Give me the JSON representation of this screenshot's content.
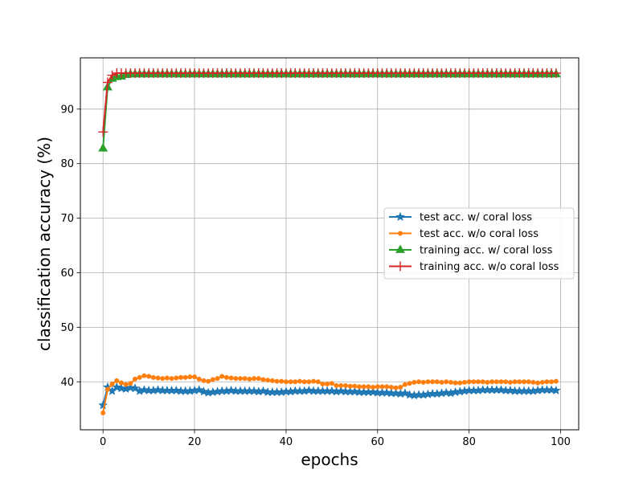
{
  "chart_data": {
    "type": "line",
    "xlabel": "epochs",
    "ylabel": "classification accuracy (%)",
    "xlim": [
      -4.95,
      103.95
    ],
    "ylim": [
      31.2,
      99.4
    ],
    "xticks": [
      0,
      20,
      40,
      60,
      80,
      100
    ],
    "yticks": [
      40,
      50,
      60,
      70,
      80,
      90
    ],
    "grid": true,
    "legend_position": "center-right",
    "series": [
      {
        "name": "test acc. w/ coral loss",
        "color": "#1f77b4",
        "marker": "star",
        "x": [
          0,
          1,
          2,
          3,
          4,
          5,
          6,
          7,
          8,
          9,
          10,
          11,
          12,
          13,
          14,
          15,
          16,
          17,
          18,
          19,
          20,
          21,
          22,
          23,
          24,
          25,
          26,
          27,
          28,
          29,
          30,
          31,
          32,
          33,
          34,
          35,
          36,
          37,
          38,
          39,
          40,
          41,
          42,
          43,
          44,
          45,
          46,
          47,
          48,
          49,
          50,
          51,
          52,
          53,
          54,
          55,
          56,
          57,
          58,
          59,
          60,
          61,
          62,
          63,
          64,
          65,
          66,
          67,
          68,
          69,
          70,
          71,
          72,
          73,
          74,
          75,
          76,
          77,
          78,
          79,
          80,
          81,
          82,
          83,
          84,
          85,
          86,
          87,
          88,
          89,
          90,
          91,
          92,
          93,
          94,
          95,
          96,
          97,
          98,
          99
        ],
        "y": [
          35.7,
          39.0,
          38.3,
          39.0,
          38.8,
          38.7,
          38.9,
          38.8,
          38.3,
          38.5,
          38.4,
          38.4,
          38.5,
          38.4,
          38.4,
          38.4,
          38.4,
          38.3,
          38.3,
          38.3,
          38.4,
          38.5,
          38.2,
          38.0,
          38.1,
          38.2,
          38.3,
          38.3,
          38.4,
          38.3,
          38.3,
          38.3,
          38.3,
          38.3,
          38.2,
          38.3,
          38.1,
          38.1,
          38.1,
          38.1,
          38.2,
          38.2,
          38.3,
          38.3,
          38.3,
          38.4,
          38.3,
          38.3,
          38.3,
          38.3,
          38.3,
          38.2,
          38.3,
          38.2,
          38.2,
          38.2,
          38.1,
          38.1,
          38.1,
          38.1,
          38.0,
          38.0,
          38.0,
          37.9,
          37.9,
          37.8,
          37.9,
          37.6,
          37.5,
          37.6,
          37.6,
          37.7,
          37.8,
          37.8,
          37.9,
          38.0,
          37.9,
          38.1,
          38.2,
          38.3,
          38.4,
          38.4,
          38.4,
          38.5,
          38.5,
          38.5,
          38.5,
          38.5,
          38.4,
          38.4,
          38.3,
          38.3,
          38.3,
          38.3,
          38.3,
          38.4,
          38.5,
          38.5,
          38.5,
          38.4
        ]
      },
      {
        "name": "test acc. w/o coral loss",
        "color": "#ff7f0e",
        "marker": "circle",
        "x": [
          0,
          1,
          2,
          3,
          4,
          5,
          6,
          7,
          8,
          9,
          10,
          11,
          12,
          13,
          14,
          15,
          16,
          17,
          18,
          19,
          20,
          21,
          22,
          23,
          24,
          25,
          26,
          27,
          28,
          29,
          30,
          31,
          32,
          33,
          34,
          35,
          36,
          37,
          38,
          39,
          40,
          41,
          42,
          43,
          44,
          45,
          46,
          47,
          48,
          49,
          50,
          51,
          52,
          53,
          54,
          55,
          56,
          57,
          58,
          59,
          60,
          61,
          62,
          63,
          64,
          65,
          66,
          67,
          68,
          69,
          70,
          71,
          72,
          73,
          74,
          75,
          76,
          77,
          78,
          79,
          80,
          81,
          82,
          83,
          84,
          85,
          86,
          87,
          88,
          89,
          90,
          91,
          92,
          93,
          94,
          95,
          96,
          97,
          98,
          99
        ],
        "y": [
          34.3,
          38.6,
          39.6,
          40.2,
          39.8,
          39.5,
          39.7,
          40.5,
          40.8,
          41.1,
          41.0,
          40.8,
          40.7,
          40.6,
          40.7,
          40.6,
          40.7,
          40.8,
          40.8,
          40.9,
          40.9,
          40.5,
          40.2,
          40.1,
          40.4,
          40.6,
          41.0,
          40.8,
          40.7,
          40.6,
          40.6,
          40.6,
          40.5,
          40.6,
          40.6,
          40.4,
          40.3,
          40.2,
          40.1,
          40.1,
          40.0,
          40.0,
          40.0,
          40.1,
          40.0,
          40.0,
          40.1,
          40.0,
          39.6,
          39.6,
          39.7,
          39.3,
          39.3,
          39.3,
          39.2,
          39.2,
          39.1,
          39.1,
          39.1,
          39.0,
          39.1,
          39.1,
          39.1,
          39.0,
          38.9,
          39.0,
          39.5,
          39.7,
          39.9,
          40.0,
          39.9,
          40.0,
          40.0,
          40.0,
          39.9,
          40.0,
          39.9,
          39.8,
          39.8,
          39.9,
          40.0,
          40.0,
          40.0,
          40.0,
          39.9,
          40.0,
          40.0,
          40.0,
          40.0,
          39.9,
          40.0,
          40.0,
          40.0,
          40.0,
          39.9,
          39.8,
          39.9,
          40.0,
          40.0,
          40.1
        ]
      },
      {
        "name": "training acc. w/ coral loss",
        "color": "#2ca02c",
        "marker": "triangle",
        "x": [
          0,
          1,
          2,
          3,
          4,
          5,
          6,
          7,
          8,
          9,
          10,
          11,
          12,
          13,
          14,
          15,
          16,
          17,
          18,
          19,
          20,
          21,
          22,
          23,
          24,
          25,
          26,
          27,
          28,
          29,
          30,
          31,
          32,
          33,
          34,
          35,
          36,
          37,
          38,
          39,
          40,
          41,
          42,
          43,
          44,
          45,
          46,
          47,
          48,
          49,
          50,
          51,
          52,
          53,
          54,
          55,
          56,
          57,
          58,
          59,
          60,
          61,
          62,
          63,
          64,
          65,
          66,
          67,
          68,
          69,
          70,
          71,
          72,
          73,
          74,
          75,
          76,
          77,
          78,
          79,
          80,
          81,
          82,
          83,
          84,
          85,
          86,
          87,
          88,
          89,
          90,
          91,
          92,
          93,
          94,
          95,
          96,
          97,
          98,
          99
        ],
        "y": [
          82.8,
          94.0,
          95.6,
          95.9,
          96.0,
          96.3,
          96.4,
          96.4,
          96.4,
          96.4,
          96.4,
          96.4,
          96.4,
          96.4,
          96.4,
          96.4,
          96.4,
          96.4,
          96.4,
          96.4,
          96.4,
          96.4,
          96.4,
          96.4,
          96.4,
          96.4,
          96.4,
          96.4,
          96.4,
          96.4,
          96.4,
          96.4,
          96.4,
          96.4,
          96.4,
          96.4,
          96.4,
          96.4,
          96.4,
          96.4,
          96.4,
          96.4,
          96.4,
          96.4,
          96.4,
          96.4,
          96.4,
          96.4,
          96.4,
          96.4,
          96.4,
          96.4,
          96.4,
          96.4,
          96.4,
          96.4,
          96.4,
          96.4,
          96.4,
          96.4,
          96.4,
          96.4,
          96.4,
          96.4,
          96.4,
          96.4,
          96.4,
          96.4,
          96.4,
          96.4,
          96.4,
          96.4,
          96.4,
          96.4,
          96.4,
          96.4,
          96.4,
          96.4,
          96.4,
          96.4,
          96.4,
          96.4,
          96.4,
          96.4,
          96.4,
          96.4,
          96.4,
          96.4,
          96.4,
          96.4,
          96.4,
          96.4,
          96.4,
          96.4,
          96.4,
          96.4,
          96.4,
          96.4,
          96.4,
          96.4
        ]
      },
      {
        "name": "training acc. w/o coral loss",
        "color": "#d62728",
        "marker": "plus",
        "x": [
          0,
          1,
          2,
          3,
          4,
          5,
          6,
          7,
          8,
          9,
          10,
          11,
          12,
          13,
          14,
          15,
          16,
          17,
          18,
          19,
          20,
          21,
          22,
          23,
          24,
          25,
          26,
          27,
          28,
          29,
          30,
          31,
          32,
          33,
          34,
          35,
          36,
          37,
          38,
          39,
          40,
          41,
          42,
          43,
          44,
          45,
          46,
          47,
          48,
          49,
          50,
          51,
          52,
          53,
          54,
          55,
          56,
          57,
          58,
          59,
          60,
          61,
          62,
          63,
          64,
          65,
          66,
          67,
          68,
          69,
          70,
          71,
          72,
          73,
          74,
          75,
          76,
          77,
          78,
          79,
          80,
          81,
          82,
          83,
          84,
          85,
          86,
          87,
          88,
          89,
          90,
          91,
          92,
          93,
          94,
          95,
          96,
          97,
          98,
          99
        ],
        "y": [
          85.8,
          94.9,
          96.2,
          96.6,
          96.6,
          96.6,
          96.6,
          96.6,
          96.6,
          96.6,
          96.6,
          96.6,
          96.6,
          96.6,
          96.6,
          96.6,
          96.6,
          96.6,
          96.6,
          96.6,
          96.6,
          96.6,
          96.6,
          96.6,
          96.6,
          96.6,
          96.6,
          96.6,
          96.6,
          96.6,
          96.6,
          96.6,
          96.6,
          96.6,
          96.6,
          96.6,
          96.6,
          96.6,
          96.6,
          96.6,
          96.6,
          96.6,
          96.6,
          96.6,
          96.6,
          96.6,
          96.6,
          96.6,
          96.6,
          96.6,
          96.6,
          96.6,
          96.6,
          96.6,
          96.6,
          96.6,
          96.6,
          96.6,
          96.6,
          96.6,
          96.6,
          96.6,
          96.6,
          96.6,
          96.6,
          96.6,
          96.6,
          96.6,
          96.6,
          96.6,
          96.6,
          96.6,
          96.6,
          96.6,
          96.6,
          96.6,
          96.6,
          96.6,
          96.6,
          96.6,
          96.6,
          96.6,
          96.6,
          96.6,
          96.6,
          96.6,
          96.6,
          96.6,
          96.6,
          96.6,
          96.6,
          96.6,
          96.6,
          96.6,
          96.6,
          96.6,
          96.6,
          96.6,
          96.6,
          96.6
        ]
      }
    ]
  }
}
